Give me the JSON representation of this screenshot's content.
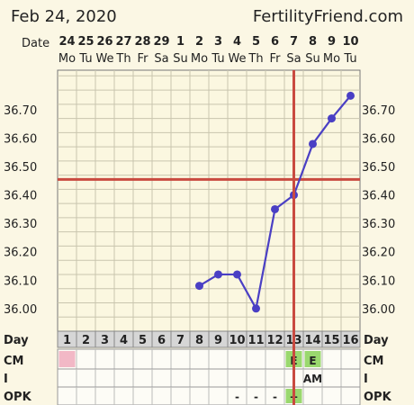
{
  "header": {
    "date": "Feb 24, 2020",
    "site": "FertilityFriend.com"
  },
  "chart_data": {
    "type": "line",
    "date_label": "Date",
    "dates": [
      "24",
      "25",
      "26",
      "27",
      "28",
      "29",
      "1",
      "2",
      "3",
      "4",
      "5",
      "6",
      "7",
      "8",
      "9",
      "10"
    ],
    "weekdays": [
      "Mo",
      "Tu",
      "We",
      "Th",
      "Fr",
      "Sa",
      "Su",
      "Mo",
      "Tu",
      "We",
      "Th",
      "Fr",
      "Sa",
      "Su",
      "Mo",
      "Tu"
    ],
    "cycle_label": "Day",
    "cycle_days": [
      "1",
      "2",
      "3",
      "4",
      "5",
      "6",
      "7",
      "8",
      "9",
      "10",
      "11",
      "12",
      "13",
      "14",
      "15",
      "16"
    ],
    "y_ticks": [
      "36.00",
      "36.10",
      "36.20",
      "36.30",
      "36.40",
      "36.50",
      "36.60",
      "36.70"
    ],
    "ylim": [
      35.92,
      36.84
    ],
    "series": [
      {
        "color": "#4a3fc4",
        "points": [
          {
            "day": 8,
            "value": 36.08
          },
          {
            "day": 9,
            "value": 36.12
          },
          {
            "day": 10,
            "value": 36.12
          },
          {
            "day": 11,
            "value": 36.0
          },
          {
            "day": 12,
            "value": 36.35
          },
          {
            "day": 13,
            "value": 36.4
          },
          {
            "day": 14,
            "value": 36.58
          },
          {
            "day": 15,
            "value": 36.67
          },
          {
            "day": 16,
            "value": 36.75
          }
        ]
      }
    ],
    "coverline": {
      "value": 36.455,
      "color": "#c94a40"
    },
    "ovulation_day": 13,
    "grid": true,
    "rows": [
      {
        "label": "CM",
        "cells": [
          {
            "day": 1,
            "text": "",
            "fill": "#f2b8c6"
          },
          {
            "day": 13,
            "text": "E",
            "fill": "#9ad86e"
          },
          {
            "day": 14,
            "text": "E",
            "fill": "#9ad86e"
          }
        ]
      },
      {
        "label": "I",
        "cells": [
          {
            "day": 14,
            "text": "AM",
            "fill": ""
          }
        ]
      },
      {
        "label": "OPK",
        "cells": [
          {
            "day": 10,
            "text": "-",
            "fill": ""
          },
          {
            "day": 11,
            "text": "-",
            "fill": ""
          },
          {
            "day": 12,
            "text": "-",
            "fill": ""
          },
          {
            "day": 13,
            "text": "+",
            "fill": "#9ad86e"
          }
        ]
      }
    ]
  }
}
